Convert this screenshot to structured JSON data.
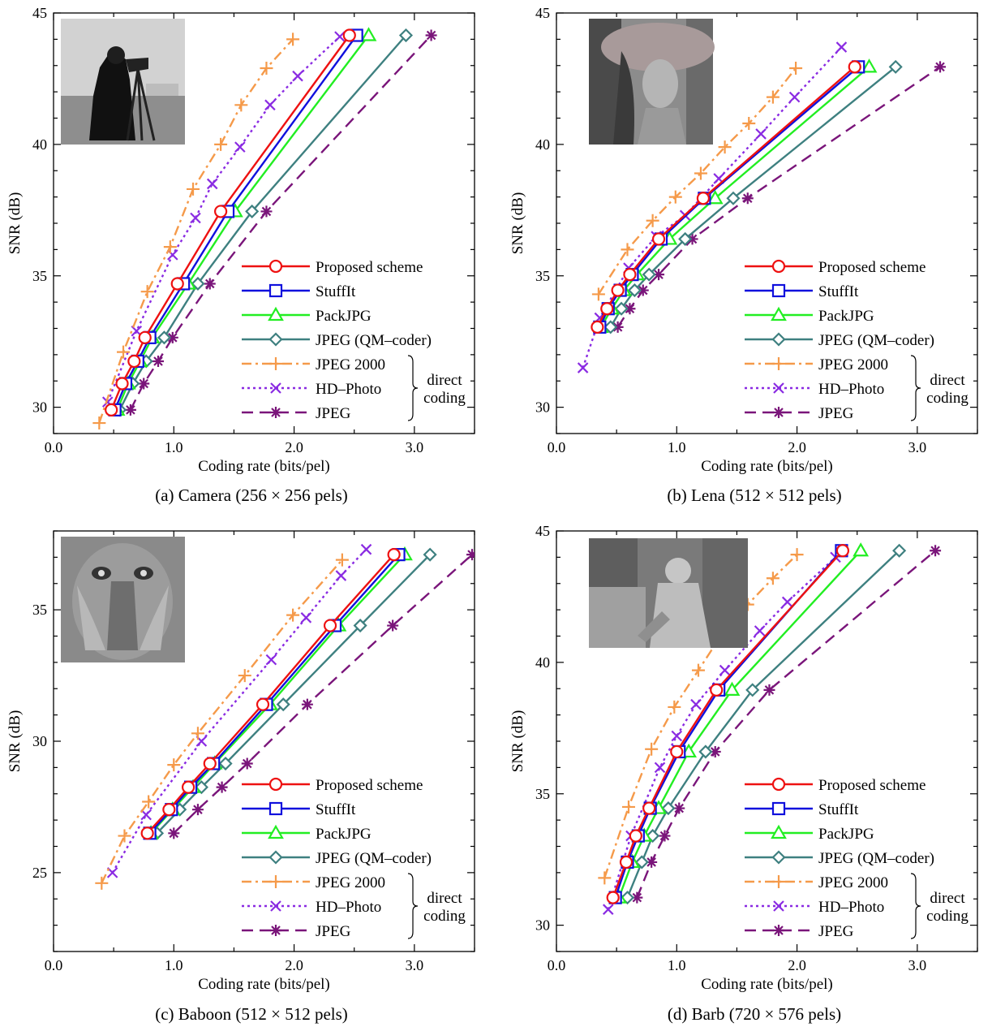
{
  "shared": {
    "xlabel": "Coding rate (bits/pel)",
    "ylabel": "SNR (dB)",
    "xtick_labels": [
      "0.0",
      "1.0",
      "2.0",
      "3.0"
    ],
    "bracket_label_1": "direct",
    "bracket_label_2": "coding",
    "legend": [
      {
        "name": "Proposed scheme",
        "color": "#ee1111",
        "marker": "circle",
        "dash": "solid"
      },
      {
        "name": "StuffIt",
        "color": "#1010dd",
        "marker": "square",
        "dash": "solid"
      },
      {
        "name": "PackJPG",
        "color": "#22ee22",
        "marker": "triangle",
        "dash": "solid"
      },
      {
        "name": "JPEG (QM–coder)",
        "color": "#3e8080",
        "marker": "diamond",
        "dash": "solid"
      },
      {
        "name": "JPEG 2000",
        "color": "#f59a4a",
        "marker": "plus",
        "dash": "dashdot"
      },
      {
        "name": "HD–Photo",
        "color": "#8a2be2",
        "marker": "x",
        "dash": "dot"
      },
      {
        "name": "JPEG",
        "color": "#7a157a",
        "marker": "star",
        "dash": "dash"
      }
    ]
  },
  "captions": [
    "(a) Camera (256 × 256 pels)",
    "(b) Lena (512 × 512 pels)",
    "(c) Baboon (512 × 512 pels)",
    "(d) Barb (720 × 576 pels)"
  ],
  "chart_data": [
    {
      "type": "line",
      "image": "Camera",
      "xlim": [
        0,
        3.5
      ],
      "ylim": [
        29,
        45
      ],
      "yticks": [
        30,
        35,
        40,
        45
      ],
      "series": [
        {
          "name": "Proposed scheme",
          "x": [
            0.48,
            0.57,
            0.67,
            0.76,
            1.03,
            1.39,
            2.46
          ],
          "y": [
            29.9,
            30.9,
            31.75,
            32.65,
            34.7,
            37.45,
            44.15
          ]
        },
        {
          "name": "StuffIt",
          "x": [
            0.51,
            0.6,
            0.7,
            0.8,
            1.08,
            1.45,
            2.52
          ],
          "y": [
            29.9,
            30.9,
            31.75,
            32.65,
            34.7,
            37.45,
            44.15
          ]
        },
        {
          "name": "PackJPG",
          "x": [
            0.53,
            0.62,
            0.72,
            0.82,
            1.12,
            1.51,
            2.62
          ],
          "y": [
            29.9,
            30.9,
            31.75,
            32.65,
            34.7,
            37.45,
            44.15
          ]
        },
        {
          "name": "JPEG (QM–coder)",
          "x": [
            0.55,
            0.66,
            0.77,
            0.92,
            1.2,
            1.65,
            2.93
          ],
          "y": [
            29.9,
            30.9,
            31.75,
            32.65,
            34.7,
            37.45,
            44.15
          ]
        },
        {
          "name": "JPEG 2000",
          "x": [
            0.38,
            0.58,
            0.78,
            0.97,
            1.16,
            1.39,
            1.56,
            1.77,
            1.99
          ],
          "y": [
            29.4,
            32.1,
            34.4,
            36.1,
            38.3,
            40.0,
            41.5,
            42.9,
            44.0
          ]
        },
        {
          "name": "HD–Photo",
          "x": [
            0.45,
            0.69,
            0.99,
            1.18,
            1.32,
            1.55,
            1.8,
            2.03,
            2.38
          ],
          "y": [
            30.2,
            32.9,
            35.8,
            37.2,
            38.5,
            39.9,
            41.5,
            42.6,
            44.1
          ]
        },
        {
          "name": "JPEG",
          "x": [
            0.64,
            0.75,
            0.87,
            0.99,
            1.3,
            1.77,
            3.14
          ],
          "y": [
            29.9,
            30.9,
            31.75,
            32.65,
            34.7,
            37.45,
            44.15
          ]
        }
      ]
    },
    {
      "type": "line",
      "image": "Lena",
      "xlim": [
        0,
        3.5
      ],
      "ylim": [
        29,
        45
      ],
      "yticks": [
        30,
        35,
        40,
        45
      ],
      "series": [
        {
          "name": "Proposed scheme",
          "x": [
            0.34,
            0.42,
            0.51,
            0.61,
            0.85,
            1.22,
            2.48
          ],
          "y": [
            33.05,
            33.75,
            34.45,
            35.05,
            36.4,
            37.95,
            42.95
          ]
        },
        {
          "name": "StuffIt",
          "x": [
            0.36,
            0.43,
            0.53,
            0.63,
            0.87,
            1.23,
            2.51
          ],
          "y": [
            33.05,
            33.75,
            34.45,
            35.05,
            36.4,
            37.95,
            42.95
          ]
        },
        {
          "name": "PackJPG",
          "x": [
            0.37,
            0.46,
            0.56,
            0.67,
            0.94,
            1.32,
            2.6
          ],
          "y": [
            33.05,
            33.75,
            34.45,
            35.05,
            36.4,
            37.95,
            42.95
          ]
        },
        {
          "name": "JPEG (QM–coder)",
          "x": [
            0.45,
            0.54,
            0.65,
            0.77,
            1.07,
            1.47,
            2.82
          ],
          "y": [
            33.05,
            33.75,
            34.45,
            35.05,
            36.4,
            37.95,
            42.95
          ]
        },
        {
          "name": "JPEG 2000",
          "x": [
            0.35,
            0.59,
            0.8,
            0.99,
            1.2,
            1.4,
            1.6,
            1.8,
            1.99
          ],
          "y": [
            34.3,
            36.0,
            37.1,
            38.0,
            38.9,
            39.9,
            40.8,
            41.8,
            42.9
          ]
        },
        {
          "name": "HD–Photo",
          "x": [
            0.22,
            0.36,
            0.6,
            0.83,
            1.07,
            1.35,
            1.7,
            1.98,
            2.37
          ],
          "y": [
            31.5,
            33.4,
            35.3,
            36.5,
            37.3,
            38.7,
            40.4,
            41.8,
            43.7
          ]
        },
        {
          "name": "JPEG",
          "x": [
            0.51,
            0.61,
            0.72,
            0.85,
            1.13,
            1.59,
            3.19
          ],
          "y": [
            33.05,
            33.75,
            34.45,
            35.05,
            36.4,
            37.95,
            42.95
          ]
        }
      ]
    },
    {
      "type": "line",
      "image": "Baboon",
      "xlim": [
        0,
        3.5
      ],
      "ylim": [
        22,
        38
      ],
      "yticks": [
        25,
        30,
        35
      ],
      "series": [
        {
          "name": "Proposed scheme",
          "x": [
            0.78,
            0.96,
            1.12,
            1.3,
            1.74,
            2.3,
            2.83
          ],
          "y": [
            26.5,
            27.4,
            28.25,
            29.15,
            31.4,
            34.4,
            37.1
          ]
        },
        {
          "name": "StuffIt",
          "x": [
            0.8,
            0.98,
            1.14,
            1.33,
            1.77,
            2.34,
            2.87
          ],
          "y": [
            26.5,
            27.4,
            28.25,
            29.15,
            31.4,
            34.4,
            37.1
          ]
        },
        {
          "name": "PackJPG",
          "x": [
            0.81,
            0.99,
            1.16,
            1.34,
            1.8,
            2.37,
            2.92
          ],
          "y": [
            26.5,
            27.4,
            28.25,
            29.15,
            31.4,
            34.4,
            37.1
          ]
        },
        {
          "name": "JPEG (QM–coder)",
          "x": [
            0.86,
            1.05,
            1.23,
            1.43,
            1.91,
            2.55,
            3.13
          ],
          "y": [
            26.5,
            27.4,
            28.25,
            29.15,
            31.4,
            34.4,
            37.1
          ]
        },
        {
          "name": "JPEG 2000",
          "x": [
            0.4,
            0.59,
            0.79,
            1.0,
            1.2,
            1.59,
            1.99,
            2.4
          ],
          "y": [
            24.6,
            26.4,
            27.7,
            29.1,
            30.3,
            32.5,
            34.8,
            36.9
          ]
        },
        {
          "name": "HD–Photo",
          "x": [
            0.49,
            0.77,
            1.23,
            1.81,
            2.1,
            2.39,
            2.6
          ],
          "y": [
            25.0,
            27.2,
            30.0,
            33.1,
            34.7,
            36.3,
            37.3
          ]
        },
        {
          "name": "JPEG",
          "x": [
            1.0,
            1.2,
            1.4,
            1.61,
            2.11,
            2.82,
            3.48
          ],
          "y": [
            26.5,
            27.4,
            28.25,
            29.15,
            31.4,
            34.4,
            37.1
          ]
        }
      ]
    },
    {
      "type": "line",
      "image": "Barb",
      "xlim": [
        0,
        3.5
      ],
      "ylim": [
        29,
        45
      ],
      "yticks": [
        30,
        35,
        40,
        45
      ],
      "series": [
        {
          "name": "Proposed scheme",
          "x": [
            0.47,
            0.58,
            0.66,
            0.77,
            1.0,
            1.33,
            2.38
          ],
          "y": [
            31.05,
            32.4,
            33.4,
            34.45,
            36.6,
            38.95,
            44.25
          ]
        },
        {
          "name": "StuffIt",
          "x": [
            0.49,
            0.59,
            0.68,
            0.78,
            1.02,
            1.35,
            2.37
          ],
          "y": [
            31.05,
            32.4,
            33.4,
            34.45,
            36.6,
            38.95,
            44.25
          ]
        },
        {
          "name": "PackJPG",
          "x": [
            0.52,
            0.63,
            0.73,
            0.85,
            1.1,
            1.46,
            2.53
          ],
          "y": [
            31.05,
            32.4,
            33.4,
            34.45,
            36.6,
            38.95,
            44.25
          ]
        },
        {
          "name": "JPEG (QM–coder)",
          "x": [
            0.59,
            0.71,
            0.8,
            0.93,
            1.24,
            1.63,
            2.85
          ],
          "y": [
            31.05,
            32.4,
            33.4,
            34.45,
            36.6,
            38.95,
            44.25
          ]
        },
        {
          "name": "JPEG 2000",
          "x": [
            0.4,
            0.6,
            0.79,
            0.98,
            1.18,
            1.38,
            1.59,
            1.8,
            2.0
          ],
          "y": [
            31.8,
            34.5,
            36.7,
            38.3,
            39.7,
            41.1,
            42.2,
            43.2,
            44.1
          ]
        },
        {
          "name": "HD–Photo",
          "x": [
            0.43,
            0.62,
            0.86,
            1.0,
            1.16,
            1.4,
            1.69,
            1.92,
            2.32
          ],
          "y": [
            30.6,
            33.4,
            36.0,
            37.2,
            38.4,
            39.7,
            41.2,
            42.3,
            44.0
          ]
        },
        {
          "name": "JPEG",
          "x": [
            0.67,
            0.79,
            0.9,
            1.02,
            1.32,
            1.77,
            3.15
          ],
          "y": [
            31.05,
            32.4,
            33.4,
            34.45,
            36.6,
            38.95,
            44.25
          ]
        }
      ]
    }
  ]
}
